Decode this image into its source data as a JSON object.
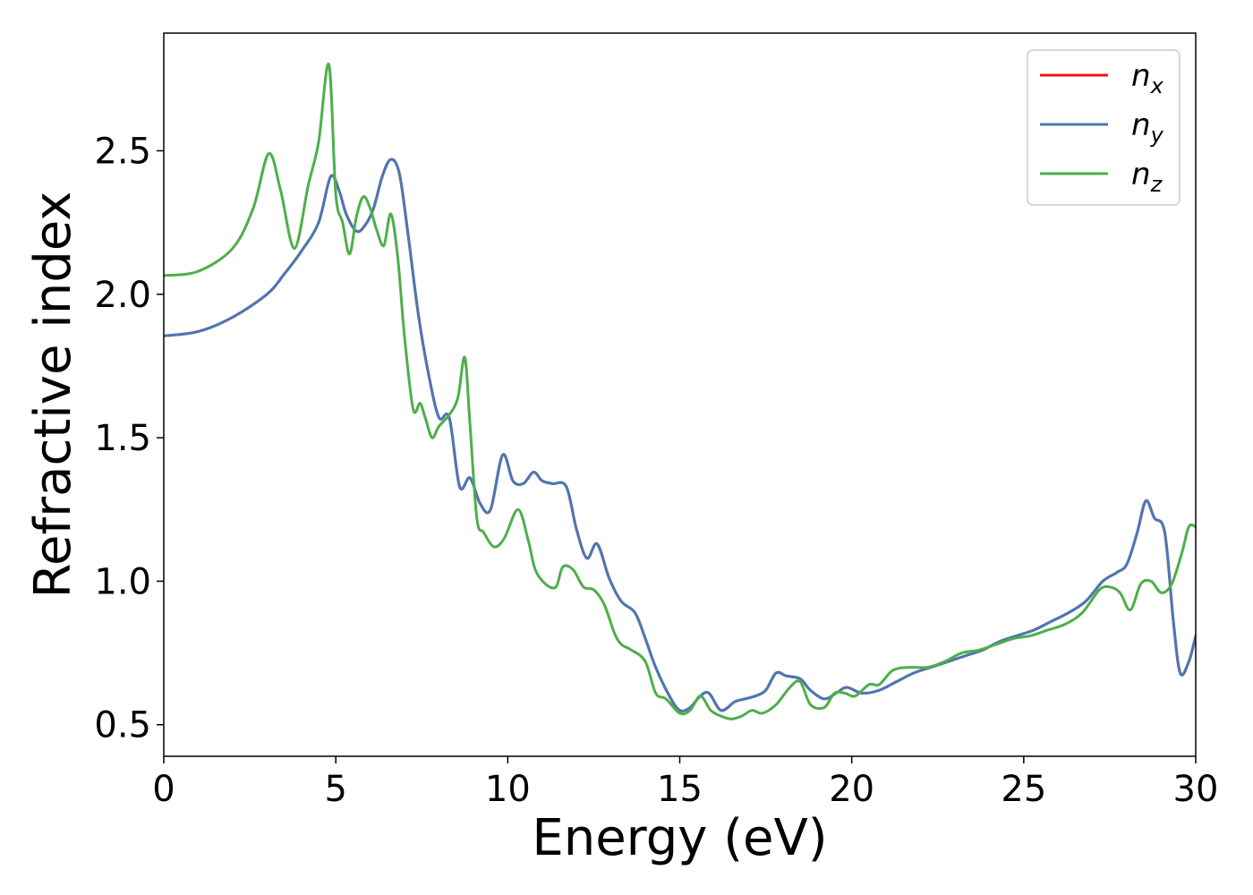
{
  "chart_data": {
    "type": "line",
    "title": "",
    "xlabel": "Energy (eV)",
    "ylabel": "Refractive index",
    "xlim": [
      0,
      30
    ],
    "ylim": [
      0.39,
      2.91
    ],
    "xticks": [
      0,
      5,
      10,
      15,
      20,
      25,
      30
    ],
    "xtick_labels": [
      "0",
      "5",
      "10",
      "15",
      "20",
      "25",
      "30"
    ],
    "yticks": [
      0.5,
      1.0,
      1.5,
      2.0,
      2.5
    ],
    "ytick_labels": [
      "0.5",
      "1.0",
      "1.5",
      "2.0",
      "2.5"
    ],
    "grid": false,
    "legend_position": "top-right",
    "series": [
      {
        "name": "n_x",
        "legend_base": "n",
        "legend_sub": "x",
        "color": "#e41a1c",
        "x": [
          0,
          1,
          2,
          3,
          3.5,
          4,
          4.5,
          4.85,
          5.1,
          5.3,
          5.6,
          5.85,
          6.1,
          6.35,
          6.6,
          6.85,
          7.1,
          7.4,
          7.7,
          8.0,
          8.3,
          8.6,
          8.9,
          9.2,
          9.5,
          9.85,
          10.15,
          10.45,
          10.75,
          11.0,
          11.3,
          11.7,
          12.0,
          12.3,
          12.6,
          12.95,
          13.3,
          13.7,
          14.0,
          14.3,
          14.7,
          15.0,
          15.3,
          15.6,
          15.85,
          16.2,
          16.6,
          16.9,
          17.2,
          17.5,
          17.8,
          18.1,
          18.5,
          18.8,
          19.2,
          19.55,
          19.85,
          20.3,
          20.8,
          21.3,
          21.8,
          22.3,
          22.8,
          23.3,
          23.8,
          24.3,
          24.8,
          25.3,
          25.8,
          26.3,
          26.8,
          27.3,
          27.7,
          28.0,
          28.3,
          28.55,
          28.8,
          29.1,
          29.35,
          29.55,
          29.8,
          30.0
        ],
        "y": [
          1.855,
          1.87,
          1.92,
          2.0,
          2.07,
          2.15,
          2.25,
          2.41,
          2.36,
          2.28,
          2.22,
          2.24,
          2.3,
          2.41,
          2.47,
          2.42,
          2.21,
          1.93,
          1.72,
          1.57,
          1.57,
          1.33,
          1.36,
          1.27,
          1.25,
          1.44,
          1.35,
          1.34,
          1.38,
          1.35,
          1.34,
          1.33,
          1.18,
          1.08,
          1.13,
          1.01,
          0.93,
          0.89,
          0.8,
          0.7,
          0.6,
          0.55,
          0.56,
          0.6,
          0.61,
          0.55,
          0.58,
          0.59,
          0.6,
          0.62,
          0.68,
          0.67,
          0.66,
          0.62,
          0.59,
          0.61,
          0.63,
          0.61,
          0.62,
          0.65,
          0.68,
          0.7,
          0.72,
          0.74,
          0.76,
          0.79,
          0.81,
          0.83,
          0.86,
          0.89,
          0.93,
          1.0,
          1.03,
          1.06,
          1.17,
          1.28,
          1.22,
          1.17,
          0.86,
          0.68,
          0.72,
          0.81
        ]
      },
      {
        "name": "n_y",
        "legend_base": "n",
        "legend_sub": "y",
        "color": "#4a78b4",
        "x": [
          0,
          1,
          2,
          3,
          3.5,
          4,
          4.5,
          4.85,
          5.1,
          5.3,
          5.6,
          5.85,
          6.1,
          6.35,
          6.6,
          6.85,
          7.1,
          7.4,
          7.7,
          8.0,
          8.3,
          8.6,
          8.9,
          9.2,
          9.5,
          9.85,
          10.15,
          10.45,
          10.75,
          11.0,
          11.3,
          11.7,
          12.0,
          12.3,
          12.6,
          12.95,
          13.3,
          13.7,
          14.0,
          14.3,
          14.7,
          15.0,
          15.3,
          15.6,
          15.85,
          16.2,
          16.6,
          16.9,
          17.2,
          17.5,
          17.8,
          18.1,
          18.5,
          18.8,
          19.2,
          19.55,
          19.85,
          20.3,
          20.8,
          21.3,
          21.8,
          22.3,
          22.8,
          23.3,
          23.8,
          24.3,
          24.8,
          25.3,
          25.8,
          26.3,
          26.8,
          27.3,
          27.7,
          28.0,
          28.3,
          28.55,
          28.8,
          29.1,
          29.35,
          29.55,
          29.8,
          30.0
        ],
        "y": [
          1.855,
          1.87,
          1.92,
          2.0,
          2.07,
          2.15,
          2.25,
          2.41,
          2.36,
          2.28,
          2.22,
          2.24,
          2.3,
          2.41,
          2.47,
          2.42,
          2.21,
          1.93,
          1.72,
          1.57,
          1.57,
          1.33,
          1.36,
          1.27,
          1.25,
          1.44,
          1.35,
          1.34,
          1.38,
          1.35,
          1.34,
          1.33,
          1.18,
          1.08,
          1.13,
          1.01,
          0.93,
          0.89,
          0.8,
          0.7,
          0.6,
          0.55,
          0.56,
          0.6,
          0.61,
          0.55,
          0.58,
          0.59,
          0.6,
          0.62,
          0.68,
          0.67,
          0.66,
          0.62,
          0.59,
          0.61,
          0.63,
          0.61,
          0.62,
          0.65,
          0.68,
          0.7,
          0.72,
          0.74,
          0.76,
          0.79,
          0.81,
          0.83,
          0.86,
          0.89,
          0.93,
          1.0,
          1.03,
          1.06,
          1.17,
          1.28,
          1.22,
          1.17,
          0.86,
          0.68,
          0.72,
          0.81
        ]
      },
      {
        "name": "n_z",
        "legend_base": "n",
        "legend_sub": "z",
        "color": "#4daf4a",
        "x": [
          0,
          1,
          2,
          2.6,
          3.05,
          3.4,
          3.8,
          4.2,
          4.5,
          4.8,
          5.0,
          5.2,
          5.4,
          5.6,
          5.8,
          6.0,
          6.2,
          6.4,
          6.6,
          6.8,
          7.0,
          7.25,
          7.45,
          7.6,
          7.8,
          8.0,
          8.3,
          8.55,
          8.75,
          8.9,
          9.1,
          9.3,
          9.6,
          9.9,
          10.3,
          10.6,
          10.8,
          11.1,
          11.4,
          11.6,
          11.9,
          12.2,
          12.5,
          12.8,
          13.1,
          13.3,
          13.6,
          14.0,
          14.3,
          14.6,
          15.0,
          15.3,
          15.6,
          15.9,
          16.2,
          16.5,
          16.8,
          17.1,
          17.4,
          17.8,
          18.2,
          18.5,
          18.8,
          19.2,
          19.5,
          19.8,
          20.1,
          20.5,
          20.8,
          21.2,
          21.7,
          22.2,
          22.7,
          23.2,
          23.7,
          24.2,
          24.7,
          25.2,
          25.7,
          26.2,
          26.7,
          27.2,
          27.5,
          27.8,
          28.1,
          28.4,
          28.7,
          29.0,
          29.3,
          29.6,
          29.8,
          30.0
        ],
        "y": [
          2.065,
          2.08,
          2.16,
          2.3,
          2.49,
          2.36,
          2.16,
          2.38,
          2.53,
          2.8,
          2.35,
          2.25,
          2.14,
          2.27,
          2.34,
          2.3,
          2.22,
          2.17,
          2.28,
          2.13,
          1.85,
          1.6,
          1.62,
          1.57,
          1.5,
          1.54,
          1.58,
          1.64,
          1.78,
          1.55,
          1.22,
          1.17,
          1.12,
          1.15,
          1.25,
          1.14,
          1.04,
          0.99,
          0.98,
          1.05,
          1.04,
          0.98,
          0.97,
          0.92,
          0.82,
          0.78,
          0.76,
          0.72,
          0.61,
          0.59,
          0.54,
          0.55,
          0.6,
          0.55,
          0.53,
          0.52,
          0.53,
          0.55,
          0.54,
          0.57,
          0.63,
          0.65,
          0.57,
          0.56,
          0.61,
          0.61,
          0.6,
          0.64,
          0.64,
          0.69,
          0.7,
          0.7,
          0.72,
          0.75,
          0.76,
          0.78,
          0.8,
          0.81,
          0.83,
          0.85,
          0.89,
          0.97,
          0.98,
          0.96,
          0.9,
          0.99,
          1.0,
          0.96,
          0.99,
          1.1,
          1.19,
          1.19
        ]
      }
    ]
  }
}
